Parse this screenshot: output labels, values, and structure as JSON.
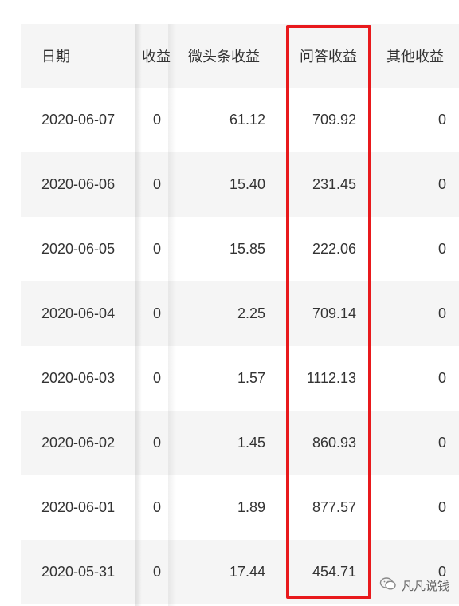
{
  "table": {
    "columns": {
      "date": "日期",
      "col2": "收益",
      "weitoutiao": "微头条收益",
      "wenda": "问答收益",
      "other": "其他收益"
    },
    "rows": [
      {
        "date": "2020-06-07",
        "col2": "0",
        "weitoutiao": "61.12",
        "wenda": "709.92",
        "other": "0"
      },
      {
        "date": "2020-06-06",
        "col2": "0",
        "weitoutiao": "15.40",
        "wenda": "231.45",
        "other": "0"
      },
      {
        "date": "2020-06-05",
        "col2": "0",
        "weitoutiao": "15.85",
        "wenda": "222.06",
        "other": "0"
      },
      {
        "date": "2020-06-04",
        "col2": "0",
        "weitoutiao": "2.25",
        "wenda": "709.14",
        "other": "0"
      },
      {
        "date": "2020-06-03",
        "col2": "0",
        "weitoutiao": "1.57",
        "wenda": "1112.13",
        "other": "0"
      },
      {
        "date": "2020-06-02",
        "col2": "0",
        "weitoutiao": "1.45",
        "wenda": "860.93",
        "other": "0"
      },
      {
        "date": "2020-06-01",
        "col2": "0",
        "weitoutiao": "1.89",
        "wenda": "877.57",
        "other": "0"
      },
      {
        "date": "2020-05-31",
        "col2": "0",
        "weitoutiao": "17.44",
        "wenda": "454.71",
        "other": "0"
      }
    ]
  },
  "highlight": {
    "color": "#e8191c",
    "column": "wenda"
  },
  "watermark": {
    "icon": "wechat-bubble-icon",
    "text": "凡凡说钱"
  }
}
